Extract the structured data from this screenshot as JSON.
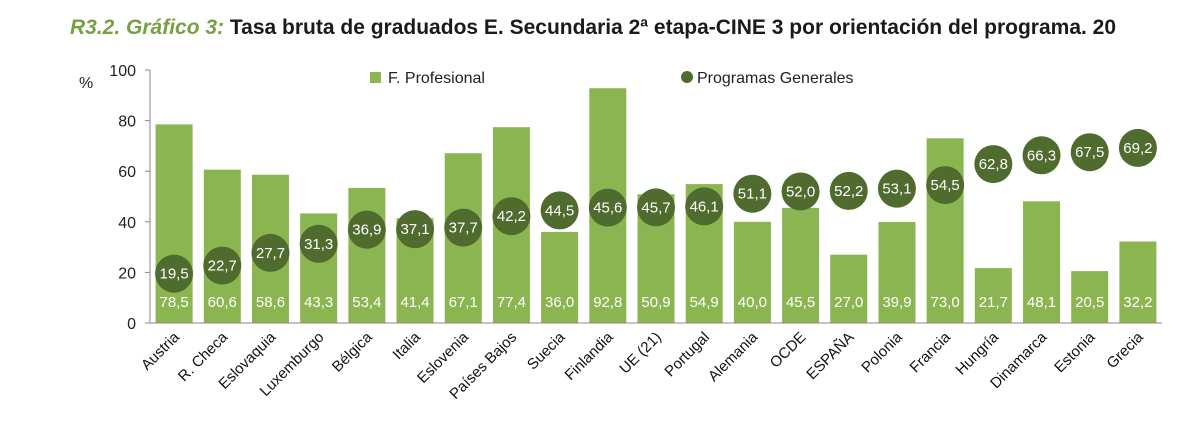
{
  "title_prefix": "R3.2. Gráfico 3:",
  "title_text": "Tasa bruta de graduados E. Secundaria 2ª etapa-CINE 3 por orientación del programa. 20",
  "chart_data": {
    "type": "bar",
    "ylabel": "%",
    "ylim": [
      0,
      100
    ],
    "yticks": [
      "0",
      "20",
      "40",
      "60",
      "80",
      "100"
    ],
    "grid": false,
    "legend_position": "top",
    "colors": {
      "bar": "#8ab550",
      "dot": "#4f6b2d"
    },
    "categories": [
      "Austria",
      "R. Checa",
      "Eslovaquia",
      "Luxemburgo",
      "Bélgica",
      "Italia",
      "Eslovenia",
      "Países Bajos",
      "Suecia",
      "Finlandia",
      "UE (21)",
      "Portugal",
      "Alemania",
      "OCDE",
      "ESPAÑA",
      "Polonia",
      "Francia",
      "Hungría",
      "Dinamarca",
      "Estonia",
      "Grecia"
    ],
    "series": [
      {
        "name": "F. Profesional",
        "type": "bar",
        "values": [
          78.5,
          60.6,
          58.6,
          43.3,
          53.4,
          41.4,
          67.1,
          77.4,
          36.0,
          92.8,
          50.9,
          54.9,
          40.0,
          45.5,
          27.0,
          39.9,
          73.0,
          21.7,
          48.1,
          20.5,
          32.2
        ],
        "labels": [
          "78,5",
          "60,6",
          "58,6",
          "43,3",
          "53,4",
          "41,4",
          "67,1",
          "77,4",
          "36,0",
          "92,8",
          "50,9",
          "54,9",
          "40,0",
          "45,5",
          "27,0",
          "39,9",
          "73,0",
          "21,7",
          "48,1",
          "20,5",
          "32,2"
        ]
      },
      {
        "name": "Programas Generales",
        "type": "scatter",
        "values": [
          19.5,
          22.7,
          27.7,
          31.3,
          36.9,
          37.1,
          37.7,
          42.2,
          44.5,
          45.6,
          45.7,
          46.1,
          51.1,
          52.0,
          52.2,
          53.1,
          54.5,
          62.8,
          66.3,
          67.5,
          69.2
        ],
        "labels": [
          "19,5",
          "22,7",
          "27,7",
          "31,3",
          "36,9",
          "37,1",
          "37,7",
          "42,2",
          "44,5",
          "45,6",
          "45,7",
          "46,1",
          "51,1",
          "52,0",
          "52,2",
          "53,1",
          "54,5",
          "62,8",
          "66,3",
          "67,5",
          "69,2"
        ]
      }
    ]
  }
}
